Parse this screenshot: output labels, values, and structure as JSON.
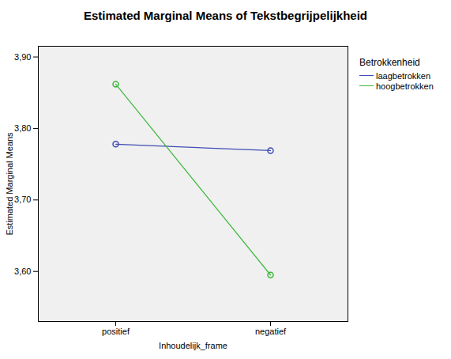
{
  "chart_data": {
    "type": "line",
    "title": "Estimated Marginal Means of Tekstbegrijpelijkheid",
    "x_label": "Inhoudelijk_frame",
    "y_label": "Estimated Marginal Means",
    "legend_title": "Betrokkenheid",
    "legend": "right",
    "categories": [
      "positief",
      "negatief"
    ],
    "series": [
      {
        "name": "laagbetrokken",
        "color": "#3f4db5",
        "values": [
          3.778,
          3.769
        ],
        "marker": "circle"
      },
      {
        "name": "hoogbetrokken",
        "color": "#3cb83c",
        "values": [
          3.862,
          3.595
        ],
        "marker": "circle"
      }
    ],
    "ylim": [
      3.53,
      3.915
    ],
    "yticks": [
      {
        "value": 3.6,
        "label": "3,60"
      },
      {
        "value": 3.7,
        "label": "3,70"
      },
      {
        "value": 3.8,
        "label": "3,80"
      },
      {
        "value": 3.9,
        "label": "3,90"
      }
    ],
    "grid": false
  }
}
